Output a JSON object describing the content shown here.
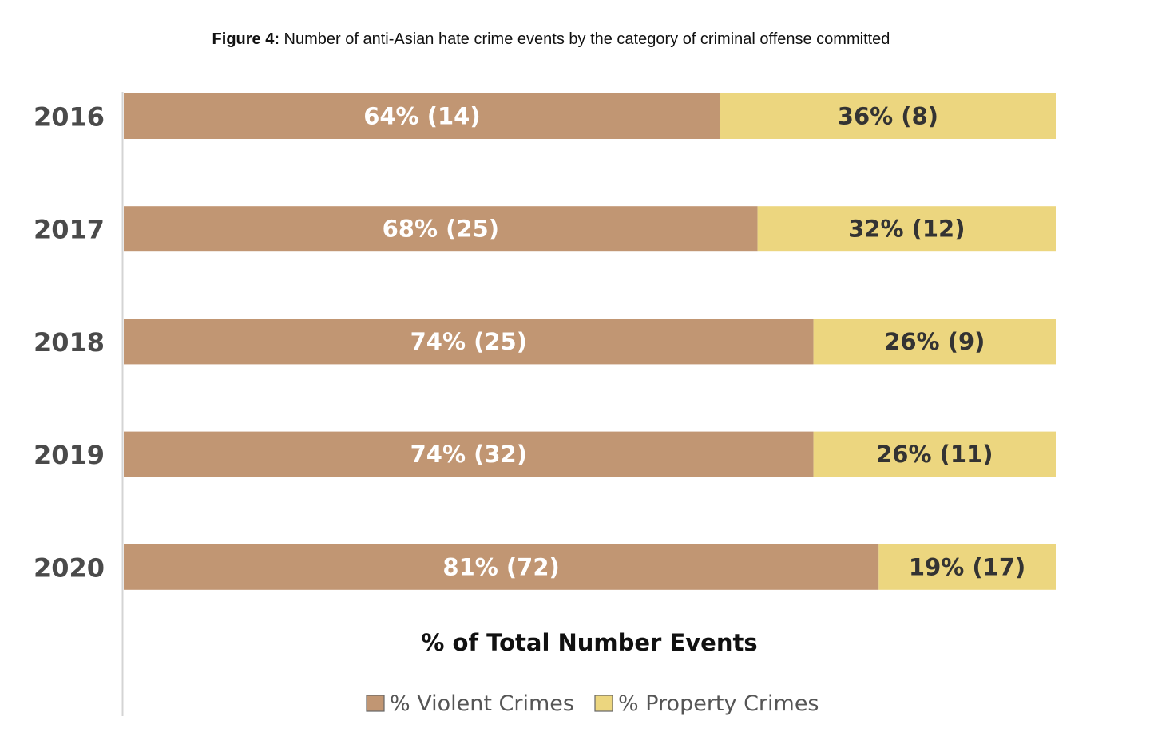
{
  "caption": {
    "label": "Figure 4:",
    "text": " Number of anti-Asian hate crime events by the category of criminal offense committed"
  },
  "chart_data": {
    "type": "bar",
    "orientation": "horizontal",
    "stacked": true,
    "categories": [
      "2016",
      "2017",
      "2018",
      "2019",
      "2020"
    ],
    "series": [
      {
        "name": "% Violent Crimes",
        "color": "#c19673",
        "label_color": "#ffffff",
        "values": [
          64,
          68,
          74,
          74,
          81
        ],
        "counts": [
          14,
          25,
          25,
          32,
          72
        ],
        "labels": [
          "64% (14)",
          "68% (25)",
          "74% (25)",
          "74% (32)",
          "81% (72)"
        ]
      },
      {
        "name": "% Property Crimes",
        "color": "#ecd67f",
        "label_color": "#333333",
        "values": [
          36,
          32,
          26,
          26,
          19
        ],
        "counts": [
          8,
          12,
          9,
          11,
          17
        ],
        "labels": [
          "36% (8)",
          "32% (12)",
          "26% (9)",
          "26% (11)",
          "19% (17)"
        ]
      }
    ],
    "xlabel": "% of Total Number Events",
    "ylabel": "",
    "xlim": [
      0,
      100
    ],
    "grid": false,
    "legend_position": "bottom"
  }
}
